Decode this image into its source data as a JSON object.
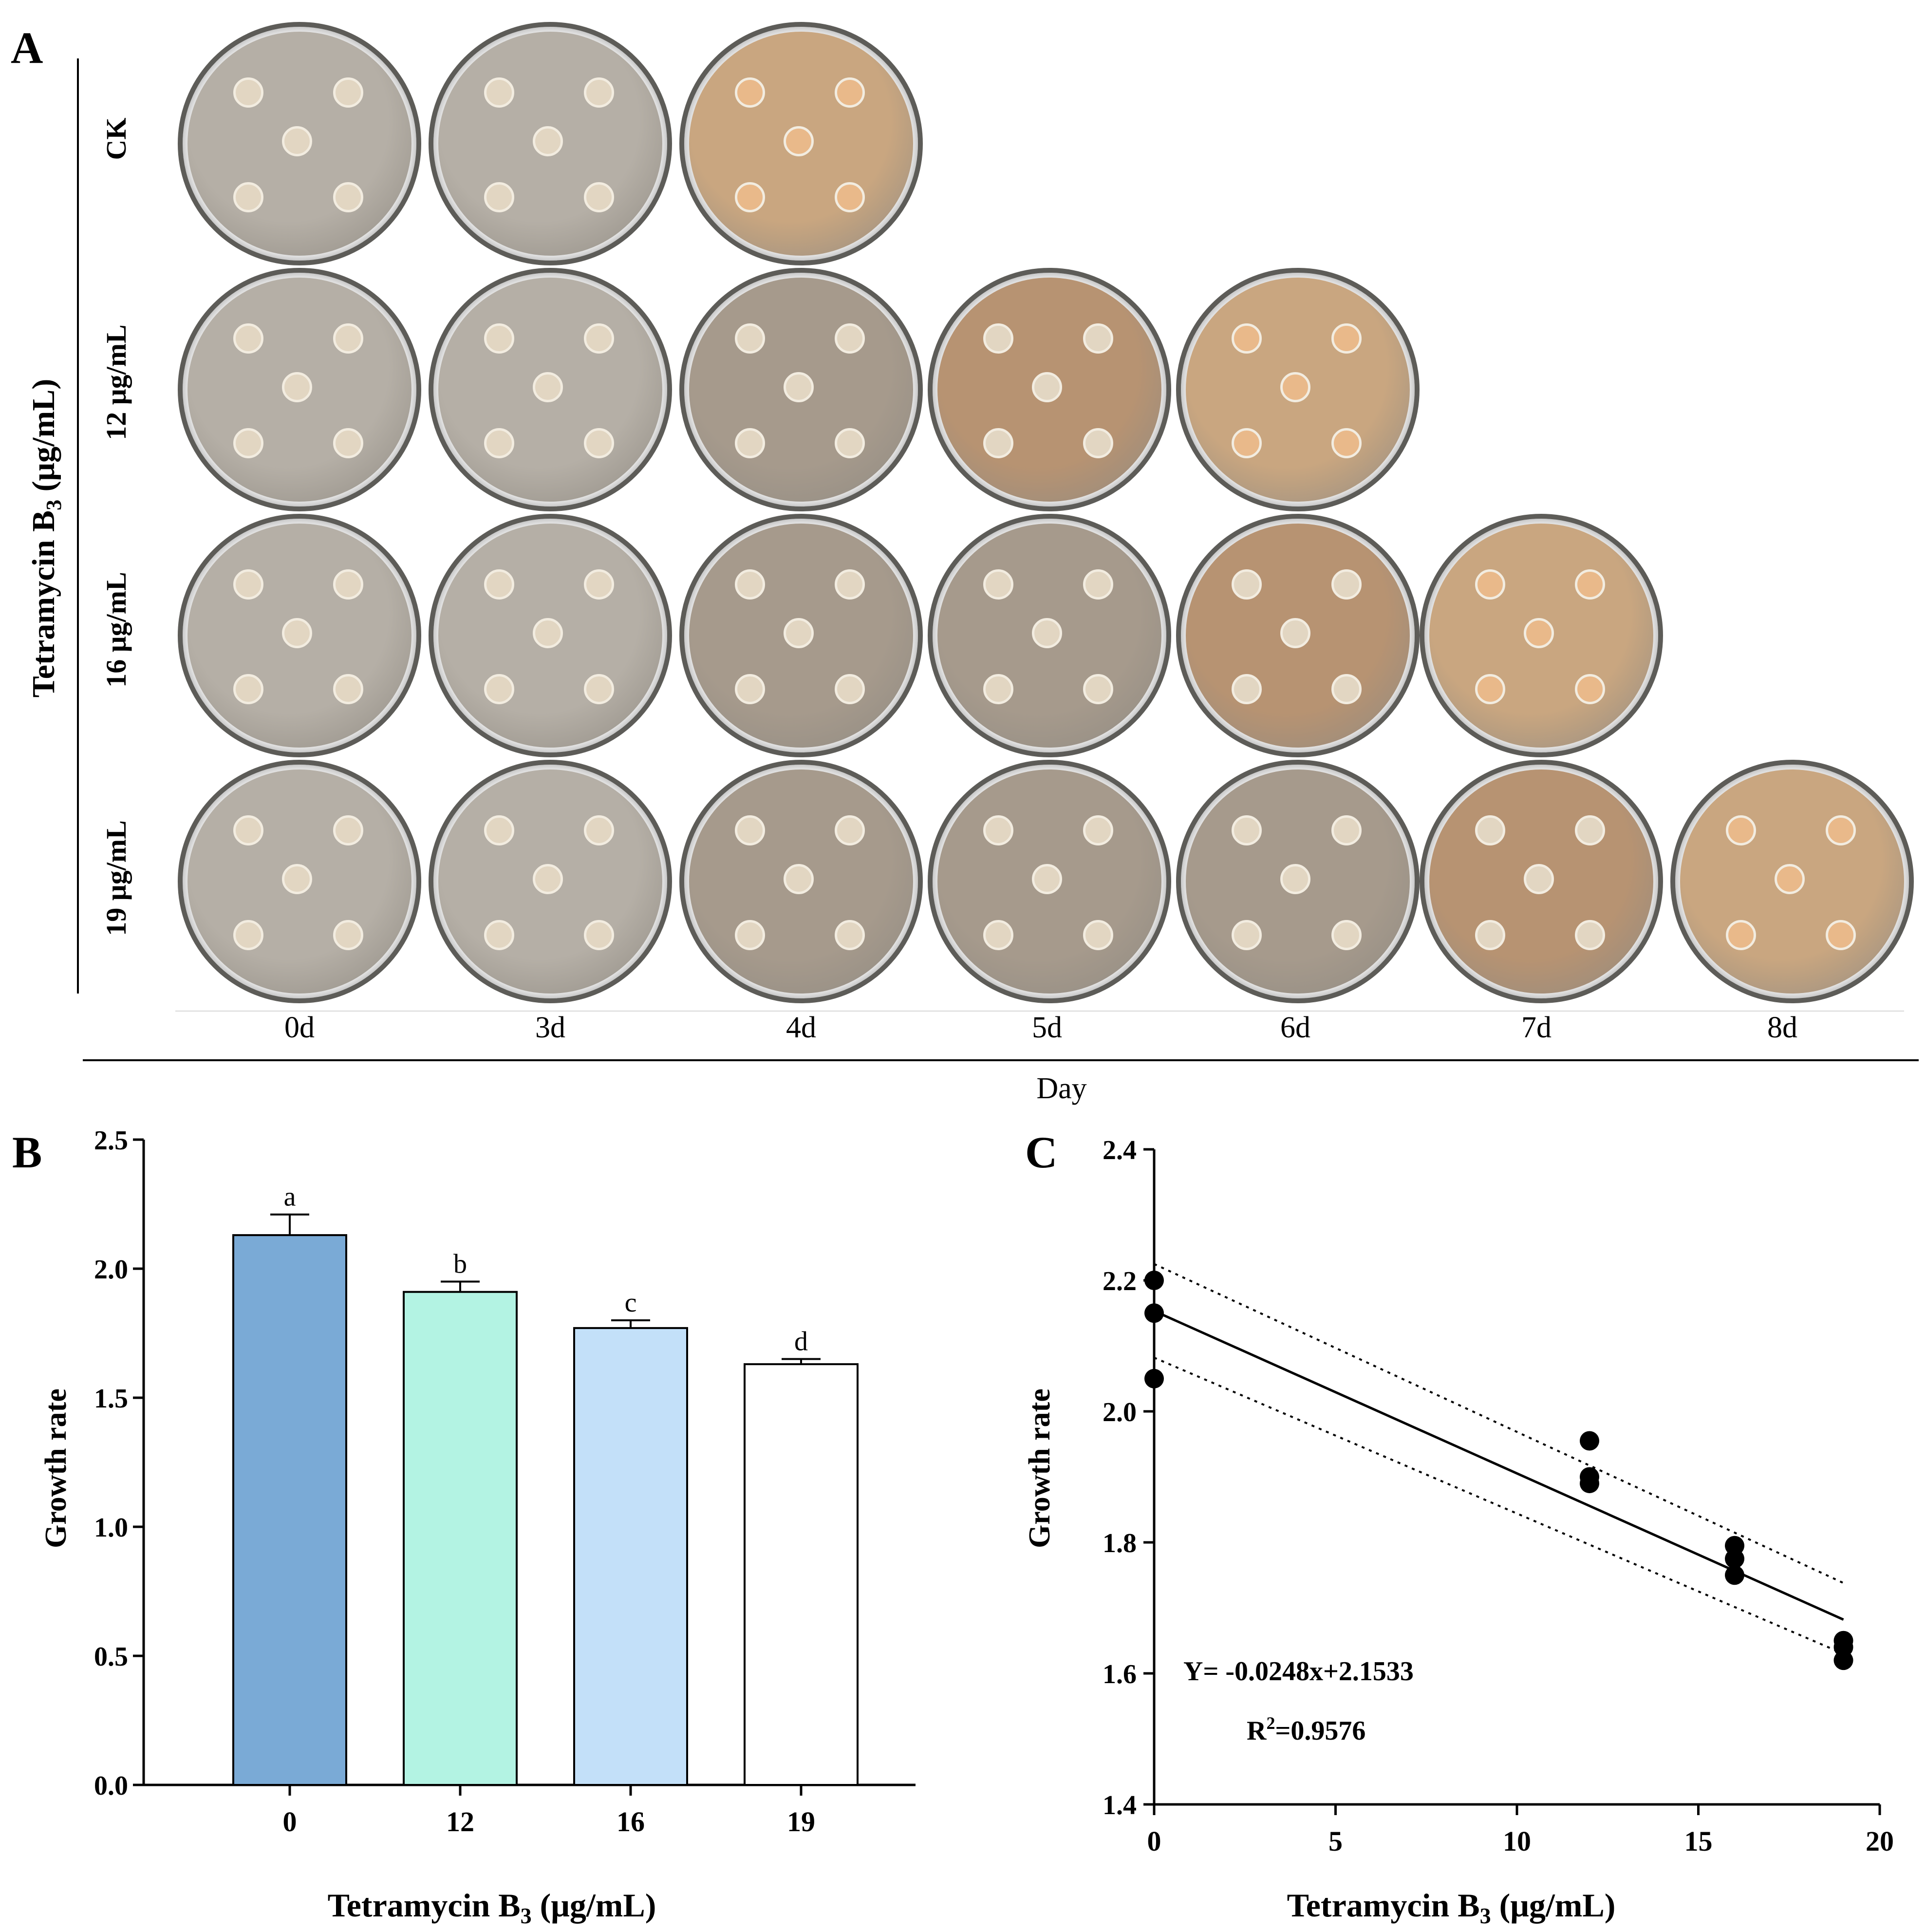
{
  "figure": {
    "panels": {
      "a": "A",
      "b": "B",
      "c": "C"
    }
  },
  "panel_a": {
    "y_axis_label_main": "Tetramycin B",
    "y_axis_label_sub": "3",
    "y_axis_label_unit": " (μg/mL)",
    "rows": [
      "CK",
      "12 μg/mL",
      "16 μg/mL",
      "19 μg/mL"
    ],
    "days": [
      "0d",
      "3d",
      "4d",
      "5d",
      "6d",
      "7d",
      "8d"
    ],
    "x_axis_label": "Day",
    "plates_per_row": [
      3,
      5,
      6,
      7
    ],
    "plate_colors": {
      "early": "#b5afa6",
      "mid": "#a69a8c",
      "late": "#c9a680",
      "overgrown": "#b79372"
    }
  },
  "chart_data": [
    {
      "type": "bar",
      "panel": "B",
      "categories": [
        "0",
        "12",
        "16",
        "19"
      ],
      "values": [
        2.13,
        1.91,
        1.77,
        1.63
      ],
      "errors": [
        0.08,
        0.04,
        0.03,
        0.02
      ],
      "letters": [
        "a",
        "b",
        "c",
        "d"
      ],
      "colors": [
        "#7aaad6",
        "#b3f3e3",
        "#c3e0f9",
        "#ffffff"
      ],
      "xlabel_main": "Tetramycin B",
      "xlabel_sub": "3",
      "xlabel_unit": " (μg/mL)",
      "ylabel": "Growth rate",
      "ylim": [
        0,
        2.5
      ],
      "yticks": [
        "0.0",
        "0.5",
        "1.0",
        "1.5",
        "2.0",
        "2.5"
      ],
      "grid": false
    },
    {
      "type": "scatter",
      "panel": "C",
      "points": [
        {
          "x": 0,
          "y": 2.2
        },
        {
          "x": 0,
          "y": 2.15
        },
        {
          "x": 0,
          "y": 2.05
        },
        {
          "x": 12,
          "y": 1.955
        },
        {
          "x": 12,
          "y": 1.9
        },
        {
          "x": 12,
          "y": 1.89
        },
        {
          "x": 16,
          "y": 1.795
        },
        {
          "x": 16,
          "y": 1.775
        },
        {
          "x": 16,
          "y": 1.75
        },
        {
          "x": 19,
          "y": 1.65
        },
        {
          "x": 19,
          "y": 1.64
        },
        {
          "x": 19,
          "y": 1.62
        }
      ],
      "fit": {
        "slope": -0.0248,
        "intercept": 2.1533,
        "x_range": [
          0,
          19
        ]
      },
      "confidence_band": {
        "upper": [
          {
            "x": 0,
            "y": 2.225
          },
          {
            "x": 19,
            "y": 1.738
          }
        ],
        "lower": [
          {
            "x": 0,
            "y": 2.082
          },
          {
            "x": 19,
            "y": 1.63
          }
        ]
      },
      "equation": "Y= -0.0248x+2.1533",
      "r2_main": "R",
      "r2_sup": "2",
      "r2_value": "=0.9576",
      "xlabel_main": "Tetramycin B",
      "xlabel_sub": "3",
      "xlabel_unit": " (μg/mL)",
      "ylabel": "Growth rate",
      "xlim": [
        0,
        20
      ],
      "ylim": [
        1.4,
        2.4
      ],
      "xticks": [
        "0",
        "5",
        "10",
        "15",
        "20"
      ],
      "yticks": [
        "1.4",
        "1.6",
        "1.8",
        "2.0",
        "2.2",
        "2.4"
      ],
      "grid": false
    }
  ]
}
